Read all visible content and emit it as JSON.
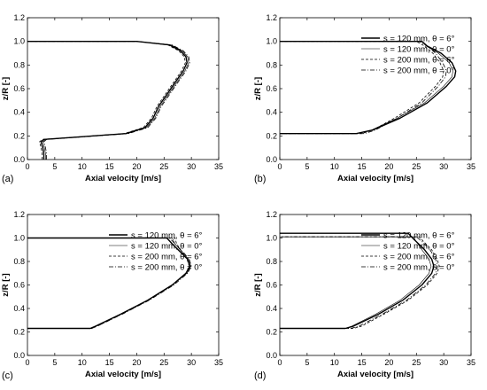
{
  "figure": {
    "panel_letters": [
      "(a)",
      "(b)",
      "(c)",
      "(d)"
    ]
  },
  "chart_data": [
    {
      "type": "line",
      "panel": "(a)",
      "xlabel": "Axial velocity [m/s]",
      "ylabel": "z/R [-]",
      "xlim": [
        0,
        35
      ],
      "ylim": [
        0,
        1.2
      ],
      "xticks": [
        0,
        5,
        10,
        15,
        20,
        25,
        30,
        35
      ],
      "yticks": [
        0.0,
        0.2,
        0.4,
        0.6,
        0.8,
        1.0,
        1.2
      ],
      "yticklabels": [
        "0.0",
        "0.2",
        "0.4",
        "0.6",
        "0.8",
        "1.0",
        "1.2"
      ],
      "grid": false,
      "legend": null,
      "series": [
        {
          "style": "solid-thick",
          "x": [
            3.0,
            3.0,
            2.8,
            2.5,
            3.0,
            9.0,
            18.0,
            21.5,
            23.0,
            24.0,
            25.5,
            27.0,
            28.5,
            29.2,
            29.0,
            28.0,
            26.0,
            20.0,
            0
          ],
          "y": [
            0.0,
            0.05,
            0.1,
            0.15,
            0.17,
            0.19,
            0.22,
            0.27,
            0.35,
            0.45,
            0.55,
            0.65,
            0.75,
            0.82,
            0.87,
            0.92,
            0.97,
            1.0,
            1.0
          ]
        },
        {
          "style": "solid-thin",
          "x": [
            3.3,
            3.3,
            3.1,
            2.8,
            3.3,
            9.3,
            18.3,
            21.8,
            23.3,
            24.3,
            25.8,
            27.3,
            28.8,
            29.5,
            29.3,
            28.3,
            26.3,
            20.0,
            0
          ],
          "y": [
            0.0,
            0.05,
            0.1,
            0.15,
            0.17,
            0.19,
            0.22,
            0.27,
            0.35,
            0.45,
            0.55,
            0.65,
            0.75,
            0.82,
            0.87,
            0.92,
            0.97,
            1.0,
            1.0
          ]
        },
        {
          "style": "dashed",
          "x": [
            2.7,
            2.7,
            2.5,
            2.2,
            2.7,
            8.7,
            17.7,
            21.2,
            22.7,
            23.7,
            25.2,
            26.7,
            28.2,
            28.9,
            28.7,
            27.7,
            25.7,
            20.0,
            0
          ],
          "y": [
            0.0,
            0.05,
            0.1,
            0.15,
            0.17,
            0.19,
            0.22,
            0.27,
            0.35,
            0.45,
            0.55,
            0.65,
            0.75,
            0.82,
            0.87,
            0.92,
            0.97,
            1.0,
            1.0
          ]
        },
        {
          "style": "dashdot",
          "x": [
            3.5,
            3.5,
            3.3,
            3.0,
            3.5,
            9.5,
            18.5,
            22.0,
            23.5,
            24.5,
            26.0,
            27.5,
            29.0,
            29.7,
            29.5,
            28.5,
            26.5,
            20.0,
            0
          ],
          "y": [
            0.0,
            0.05,
            0.1,
            0.15,
            0.17,
            0.19,
            0.22,
            0.27,
            0.35,
            0.45,
            0.55,
            0.65,
            0.75,
            0.82,
            0.87,
            0.92,
            0.97,
            1.0,
            1.0
          ]
        }
      ]
    },
    {
      "type": "line",
      "panel": "(b)",
      "xlabel": "Axial velocity [m/s]",
      "ylabel": "z/R [-]",
      "xlim": [
        0,
        35
      ],
      "ylim": [
        0,
        1.2
      ],
      "xticks": [
        0,
        5,
        10,
        15,
        20,
        25,
        30,
        35
      ],
      "yticks": [
        0.0,
        0.2,
        0.4,
        0.6,
        0.8,
        1.0,
        1.2
      ],
      "yticklabels": [
        "0.0",
        "0.2",
        "0.4",
        "0.6",
        "0.8",
        "1.0",
        "1.2"
      ],
      "grid": false,
      "legend": "top-right",
      "series": [
        {
          "name": "s = 120 mm, θ = 6°",
          "style": "solid-thick",
          "x": [
            0,
            14.0,
            17.0,
            22.0,
            27.0,
            30.5,
            32.0,
            32.2,
            31.5,
            29.5,
            27.0,
            26.0,
            0
          ],
          "y": [
            0.22,
            0.22,
            0.25,
            0.35,
            0.48,
            0.62,
            0.7,
            0.75,
            0.82,
            0.9,
            0.96,
            1.0,
            1.0
          ]
        },
        {
          "name": "s = 120 mm, θ = 0°",
          "style": "solid-thin",
          "x": [
            0,
            14.0,
            16.8,
            21.5,
            26.5,
            30.0,
            31.5,
            31.7,
            31.0,
            29.0,
            26.8,
            26.0,
            0
          ],
          "y": [
            0.22,
            0.22,
            0.25,
            0.35,
            0.48,
            0.62,
            0.7,
            0.75,
            0.82,
            0.9,
            0.96,
            1.0,
            1.0
          ]
        },
        {
          "name": "s = 200 mm, θ = 6°",
          "style": "dashed",
          "x": [
            0,
            15.0,
            17.0,
            21.0,
            25.5,
            28.5,
            29.8,
            30.0,
            29.3,
            28.0,
            26.5,
            25.0,
            0
          ],
          "y": [
            0.22,
            0.22,
            0.25,
            0.35,
            0.48,
            0.62,
            0.7,
            0.75,
            0.82,
            0.9,
            0.96,
            1.0,
            1.0
          ]
        },
        {
          "name": "s = 200 mm, θ = 0°",
          "style": "dashdot",
          "x": [
            0,
            15.5,
            17.5,
            21.5,
            26.0,
            29.0,
            30.3,
            30.5,
            29.8,
            28.5,
            27.0,
            25.5,
            0
          ],
          "y": [
            0.22,
            0.22,
            0.25,
            0.35,
            0.48,
            0.62,
            0.7,
            0.75,
            0.82,
            0.9,
            0.96,
            1.0,
            1.0
          ]
        }
      ]
    },
    {
      "type": "line",
      "panel": "(c)",
      "xlabel": "Axial velocity [m/s]",
      "ylabel": "z/R [-]",
      "xlim": [
        0,
        35
      ],
      "ylim": [
        0,
        1.2
      ],
      "xticks": [
        0,
        5,
        10,
        15,
        20,
        25,
        30,
        35
      ],
      "yticks": [
        0.0,
        0.2,
        0.4,
        0.6,
        0.8,
        1.0,
        1.2
      ],
      "yticklabels": [
        "0.0",
        "0.2",
        "0.4",
        "0.6",
        "0.8",
        "1.0",
        "1.2"
      ],
      "grid": false,
      "legend": "top-right",
      "series": [
        {
          "name": "s = 120 mm, θ = 6°",
          "style": "solid-thick",
          "x": [
            0,
            11.5,
            12.5,
            17.0,
            22.0,
            26.5,
            29.0,
            29.7,
            29.3,
            28.0,
            26.5,
            25.5,
            0
          ],
          "y": [
            0.23,
            0.23,
            0.25,
            0.35,
            0.47,
            0.6,
            0.7,
            0.76,
            0.82,
            0.88,
            0.95,
            1.0,
            1.0
          ]
        },
        {
          "name": "s = 120 mm, θ = 0°",
          "style": "solid-thin",
          "x": [
            0,
            11.5,
            12.5,
            17.0,
            22.0,
            26.5,
            29.2,
            29.9,
            29.5,
            28.3,
            27.0,
            26.5,
            0
          ],
          "y": [
            0.23,
            0.23,
            0.25,
            0.35,
            0.47,
            0.6,
            0.7,
            0.76,
            0.82,
            0.88,
            0.95,
            1.0,
            1.0
          ]
        },
        {
          "name": "s = 200 mm, θ = 6°",
          "style": "dashed",
          "x": [
            0,
            11.8,
            12.8,
            17.2,
            22.2,
            26.6,
            29.0,
            29.6,
            29.2,
            28.3,
            27.3,
            27.0,
            0
          ],
          "y": [
            0.23,
            0.23,
            0.25,
            0.35,
            0.47,
            0.6,
            0.7,
            0.76,
            0.82,
            0.88,
            0.95,
            1.0,
            1.0
          ]
        },
        {
          "name": "s = 200 mm, θ = 0°",
          "style": "dashdot",
          "x": [
            0,
            11.8,
            12.8,
            17.3,
            22.3,
            26.8,
            29.3,
            30.0,
            29.6,
            28.5,
            27.0,
            26.0,
            0
          ],
          "y": [
            0.23,
            0.23,
            0.25,
            0.35,
            0.47,
            0.6,
            0.7,
            0.76,
            0.82,
            0.88,
            0.95,
            1.0,
            1.0
          ]
        }
      ]
    },
    {
      "type": "line",
      "panel": "(d)",
      "xlabel": "Axial velocity [m/s]",
      "ylabel": "z/R [-]",
      "xlim": [
        0,
        35
      ],
      "ylim": [
        0,
        1.2
      ],
      "xticks": [
        0,
        5,
        10,
        15,
        20,
        25,
        30,
        35
      ],
      "yticks": [
        0.0,
        0.2,
        0.4,
        0.6,
        0.8,
        1.0,
        1.2
      ],
      "yticklabels": [
        "0.0",
        "0.2",
        "0.4",
        "0.6",
        "0.8",
        "1.0",
        "1.2"
      ],
      "grid": false,
      "legend": "top-right",
      "series": [
        {
          "name": "s = 120 mm, θ = 6°",
          "style": "solid-thick",
          "x": [
            0,
            12.0,
            13.5,
            18.0,
            22.5,
            26.0,
            27.8,
            28.2,
            27.8,
            26.5,
            24.5,
            23.5,
            0
          ],
          "y": [
            0.23,
            0.23,
            0.25,
            0.35,
            0.47,
            0.6,
            0.7,
            0.76,
            0.82,
            0.9,
            0.99,
            1.04,
            1.04
          ]
        },
        {
          "name": "s = 120 mm, θ = 0°",
          "style": "solid-thin",
          "x": [
            0,
            12.0,
            13.2,
            17.5,
            22.0,
            25.5,
            27.3,
            27.7,
            27.3,
            26.0,
            24.8,
            24.5,
            0
          ],
          "y": [
            0.23,
            0.23,
            0.25,
            0.35,
            0.47,
            0.6,
            0.7,
            0.76,
            0.82,
            0.9,
            0.98,
            1.01,
            1.01
          ]
        },
        {
          "name": "s = 200 mm, θ = 6°",
          "style": "dashed",
          "x": [
            0,
            13.5,
            15.0,
            19.0,
            23.5,
            27.0,
            28.8,
            29.2,
            28.8,
            27.8,
            26.3,
            25.5,
            0
          ],
          "y": [
            0.23,
            0.23,
            0.25,
            0.35,
            0.47,
            0.6,
            0.7,
            0.76,
            0.82,
            0.9,
            0.97,
            1.01,
            1.01
          ]
        },
        {
          "name": "s = 200 mm, θ = 0°",
          "style": "dashdot",
          "x": [
            0,
            13.0,
            14.5,
            18.7,
            23.2,
            26.7,
            28.5,
            28.9,
            28.5,
            27.5,
            26.0,
            25.0,
            0
          ],
          "y": [
            0.23,
            0.23,
            0.25,
            0.35,
            0.47,
            0.6,
            0.7,
            0.76,
            0.82,
            0.9,
            0.97,
            1.01,
            1.01
          ]
        }
      ]
    }
  ]
}
